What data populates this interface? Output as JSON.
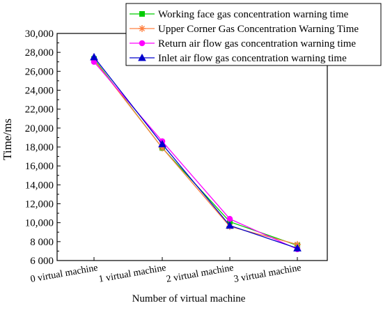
{
  "chart_data": {
    "type": "line",
    "title": "",
    "xlabel": "Number of  virtual machine",
    "ylabel": "Time/ms",
    "categories": [
      "0 virtual machine",
      "1 virtual machine",
      "2 virtual machine",
      "3 virtual machine"
    ],
    "ylim": [
      6000,
      30000
    ],
    "yticks": [
      {
        "value": 6000,
        "label": "6 000"
      },
      {
        "value": 8000,
        "label": "8 000"
      },
      {
        "value": 10000,
        "label": "10,000"
      },
      {
        "value": 12000,
        "label": "12,000"
      },
      {
        "value": 14000,
        "label": "14,000"
      },
      {
        "value": 16000,
        "label": "16,000"
      },
      {
        "value": 18000,
        "label": "18,000"
      },
      {
        "value": 20000,
        "label": "20,000"
      },
      {
        "value": 22000,
        "label": "22,000"
      },
      {
        "value": 24000,
        "label": "24,000"
      },
      {
        "value": 26000,
        "label": "26,000"
      },
      {
        "value": 28000,
        "label": "28,000"
      },
      {
        "value": 30000,
        "label": "30,000"
      }
    ],
    "grid": false,
    "legend_position": "top-right",
    "series": [
      {
        "name": "Working face gas concentration warning time",
        "color": "#00cc00",
        "marker": "square",
        "values": [
          27300,
          17900,
          10100,
          7600
        ]
      },
      {
        "name": "Upper Corner Gas Concentration Warning Time",
        "color": "#ff8040",
        "marker": "asterisk",
        "values": [
          27200,
          17900,
          9600,
          7700
        ]
      },
      {
        "name": "Return air flow gas concentration warning time",
        "color": "#ff00ff",
        "marker": "circle",
        "values": [
          27000,
          18600,
          10400,
          7200
        ]
      },
      {
        "name": "Inlet air flow gas concentration warning time",
        "color": "#0000cc",
        "marker": "triangle",
        "values": [
          27500,
          18300,
          9700,
          7300
        ]
      }
    ]
  }
}
